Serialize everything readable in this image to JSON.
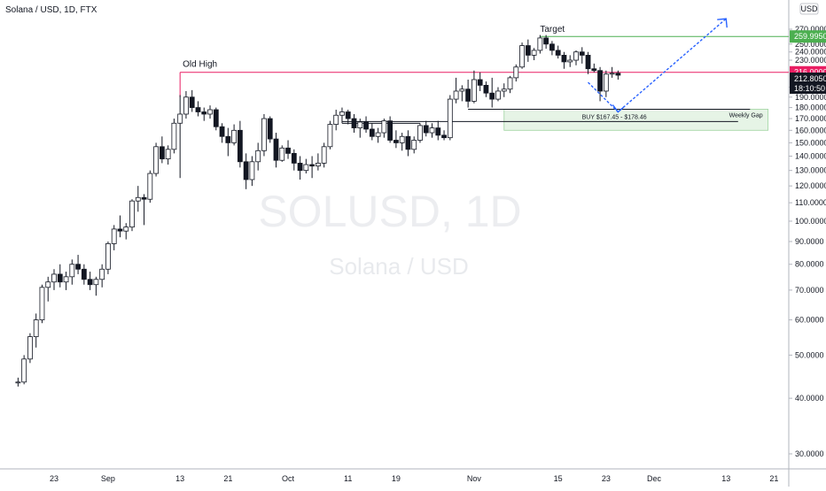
{
  "header": {
    "symbol": "Solana / USD, 1D, FTX",
    "currency_badge": "USD"
  },
  "watermark": {
    "ticker": "SOLUSD, 1D",
    "name": "Solana / USD"
  },
  "annotations": {
    "old_high": "Old High",
    "target": "Target",
    "weekly_gap": "Weekly Gap",
    "buy_zone": "BUY  $167.45 - $178.46"
  },
  "colors": {
    "up_candle": "#ffffff",
    "down_candle": "#131722",
    "old_high_line": "#e91e63",
    "target_line": "#4caf50",
    "gap_zone": "#4caf50",
    "arrow": "#2962ff"
  },
  "chart_data": {
    "type": "candlestick",
    "title": "Solana / USD, 1D, FTX",
    "xlabel": "",
    "ylabel": "USD",
    "y_scale": "log",
    "ylim": [
      28,
      285
    ],
    "y_ticks": [
      "270.0000",
      "250.0000",
      "240.0000",
      "230.0000",
      "200.0000",
      "190.0000",
      "180.0000",
      "170.0000",
      "160.0000",
      "150.0000",
      "140.0000",
      "130.0000",
      "120.0000",
      "110.0000",
      "100.0000",
      "90.0000",
      "80.0000",
      "70.0000",
      "60.0000",
      "50.0000",
      "40.0000",
      "30.0000"
    ],
    "x_ticks": [
      "23",
      "Sep",
      "13",
      "21",
      "Oct",
      "11",
      "19",
      "Nov",
      "15",
      "23",
      "Dec",
      "13",
      "21"
    ],
    "levels": [
      {
        "label": "Old High",
        "value": 216.0,
        "tag": "216.0000"
      },
      {
        "label": "Target",
        "value": 259.995,
        "tag": "259.9950"
      }
    ],
    "last_price": {
      "value": 212.805,
      "tag": "212.8050",
      "countdown": "18:10:50"
    },
    "zones": [
      {
        "label": "Weekly Gap",
        "from": 160.0,
        "to": 178.46
      }
    ],
    "buy_range": {
      "from": 167.45,
      "to": 178.46
    },
    "projection": [
      {
        "date": "2021-11-20",
        "price": 205
      },
      {
        "date": "2021-11-25",
        "price": 176
      },
      {
        "date": "2021-12-13",
        "price": 285
      }
    ],
    "ohlc": [
      [
        "2021-08-17",
        43.5,
        44.5,
        42.5,
        43.5
      ],
      [
        "2021-08-18",
        43.5,
        50,
        43,
        49
      ],
      [
        "2021-08-19",
        49,
        56,
        48,
        55
      ],
      [
        "2021-08-20",
        55,
        62,
        52,
        60
      ],
      [
        "2021-08-21",
        60,
        72,
        59,
        71
      ],
      [
        "2021-08-22",
        71,
        75,
        66,
        73
      ],
      [
        "2021-08-23",
        73,
        78,
        70,
        76
      ],
      [
        "2021-08-24",
        76,
        80,
        71,
        73
      ],
      [
        "2021-08-25",
        73,
        77,
        70,
        75
      ],
      [
        "2021-08-26",
        75,
        82,
        72,
        80
      ],
      [
        "2021-08-27",
        80,
        84,
        76,
        78
      ],
      [
        "2021-08-28",
        78,
        80,
        72,
        74
      ],
      [
        "2021-08-29",
        74,
        77,
        70,
        72
      ],
      [
        "2021-08-30",
        72,
        75,
        68,
        74
      ],
      [
        "2021-08-31",
        74,
        80,
        71,
        78
      ],
      [
        "2021-09-01",
        78,
        90,
        76,
        89
      ],
      [
        "2021-09-02",
        89,
        98,
        86,
        96
      ],
      [
        "2021-09-03",
        96,
        103,
        92,
        95
      ],
      [
        "2021-09-04",
        95,
        99,
        91,
        97
      ],
      [
        "2021-09-05",
        97,
        112,
        95,
        111
      ],
      [
        "2021-09-06",
        111,
        120,
        105,
        113
      ],
      [
        "2021-09-07",
        113,
        115,
        98,
        112
      ],
      [
        "2021-09-08",
        112,
        130,
        110,
        128
      ],
      [
        "2021-09-09",
        128,
        150,
        126,
        147
      ],
      [
        "2021-09-10",
        147,
        155,
        135,
        138
      ],
      [
        "2021-09-11",
        138,
        148,
        134,
        145
      ],
      [
        "2021-09-12",
        145,
        170,
        142,
        166
      ],
      [
        "2021-09-13",
        166,
        192,
        125,
        174
      ],
      [
        "2021-09-14",
        174,
        196,
        170,
        190
      ],
      [
        "2021-09-15",
        190,
        197,
        176,
        180
      ],
      [
        "2021-09-16",
        180,
        186,
        172,
        176
      ],
      [
        "2021-09-17",
        176,
        180,
        168,
        174
      ],
      [
        "2021-09-18",
        174,
        182,
        170,
        178
      ],
      [
        "2021-09-19",
        178,
        180,
        160,
        163
      ],
      [
        "2021-09-20",
        163,
        166,
        150,
        155
      ],
      [
        "2021-09-21",
        155,
        162,
        140,
        150
      ],
      [
        "2021-09-22",
        150,
        165,
        148,
        160
      ],
      [
        "2021-09-23",
        160,
        168,
        132,
        136
      ],
      [
        "2021-09-24",
        136,
        142,
        118,
        124
      ],
      [
        "2021-09-25",
        124,
        140,
        120,
        136
      ],
      [
        "2021-09-26",
        136,
        150,
        130,
        144
      ],
      [
        "2021-09-27",
        144,
        174,
        140,
        170
      ],
      [
        "2021-09-28",
        170,
        172,
        150,
        153
      ],
      [
        "2021-09-29",
        153,
        158,
        132,
        137
      ],
      [
        "2021-09-30",
        137,
        148,
        136,
        146
      ],
      [
        "2021-10-01",
        146,
        152,
        138,
        142
      ],
      [
        "2021-10-02",
        142,
        145,
        130,
        135
      ],
      [
        "2021-10-03",
        135,
        140,
        124,
        130
      ],
      [
        "2021-10-04",
        130,
        138,
        128,
        134
      ],
      [
        "2021-10-05",
        134,
        140,
        125,
        133
      ],
      [
        "2021-10-06",
        133,
        142,
        130,
        135
      ],
      [
        "2021-10-07",
        135,
        150,
        132,
        147
      ],
      [
        "2021-10-08",
        147,
        168,
        145,
        165
      ],
      [
        "2021-10-09",
        165,
        178,
        160,
        173
      ],
      [
        "2021-10-10",
        173,
        180,
        166,
        176
      ],
      [
        "2021-10-11",
        176,
        178,
        165,
        170
      ],
      [
        "2021-10-12",
        170,
        174,
        158,
        162
      ],
      [
        "2021-10-13",
        162,
        170,
        154,
        167
      ],
      [
        "2021-10-14",
        167,
        172,
        158,
        161
      ],
      [
        "2021-10-15",
        161,
        166,
        152,
        155
      ],
      [
        "2021-10-16",
        155,
        162,
        150,
        158
      ],
      [
        "2021-10-17",
        158,
        170,
        154,
        168
      ],
      [
        "2021-10-18",
        168,
        172,
        150,
        152
      ],
      [
        "2021-10-19",
        152,
        160,
        146,
        150
      ],
      [
        "2021-10-20",
        150,
        158,
        144,
        155
      ],
      [
        "2021-10-21",
        155,
        160,
        140,
        145
      ],
      [
        "2021-10-22",
        145,
        155,
        142,
        152
      ],
      [
        "2021-10-23",
        152,
        166,
        150,
        164
      ],
      [
        "2021-10-24",
        164,
        168,
        155,
        158
      ],
      [
        "2021-10-25",
        158,
        166,
        154,
        162
      ],
      [
        "2021-10-26",
        162,
        168,
        152,
        156
      ],
      [
        "2021-10-27",
        156,
        160,
        152,
        154
      ],
      [
        "2021-10-28",
        154,
        192,
        152,
        188
      ],
      [
        "2021-10-29",
        188,
        210,
        184,
        196
      ],
      [
        "2021-10-30",
        196,
        202,
        186,
        198
      ],
      [
        "2021-10-31",
        198,
        208,
        180,
        186
      ],
      [
        "2021-11-01",
        186,
        218,
        184,
        208
      ],
      [
        "2021-11-02",
        208,
        216,
        196,
        202
      ],
      [
        "2021-11-03",
        202,
        206,
        190,
        194
      ],
      [
        "2021-11-04",
        194,
        210,
        180,
        188
      ],
      [
        "2021-11-05",
        188,
        200,
        186,
        196
      ],
      [
        "2021-11-06",
        196,
        204,
        190,
        198
      ],
      [
        "2021-11-07",
        198,
        212,
        194,
        210
      ],
      [
        "2021-11-08",
        210,
        225,
        206,
        222
      ],
      [
        "2021-11-09",
        222,
        252,
        220,
        248
      ],
      [
        "2021-11-10",
        248,
        256,
        228,
        236
      ],
      [
        "2021-11-11",
        236,
        245,
        230,
        242
      ],
      [
        "2021-11-12",
        242,
        262,
        238,
        258
      ],
      [
        "2021-11-13",
        258,
        262,
        244,
        250
      ],
      [
        "2021-11-14",
        250,
        254,
        236,
        242
      ],
      [
        "2021-11-15",
        242,
        248,
        232,
        236
      ],
      [
        "2021-11-16",
        236,
        240,
        220,
        228
      ],
      [
        "2021-11-17",
        228,
        236,
        222,
        230
      ],
      [
        "2021-11-18",
        230,
        242,
        224,
        240
      ],
      [
        "2021-11-19",
        240,
        246,
        226,
        236
      ],
      [
        "2021-11-20",
        236,
        240,
        214,
        220
      ],
      [
        "2021-11-21",
        220,
        226,
        216,
        218
      ],
      [
        "2021-11-22",
        218,
        222,
        186,
        196
      ],
      [
        "2021-11-23",
        196,
        218,
        190,
        214
      ],
      [
        "2021-11-24",
        214,
        222,
        210,
        215
      ],
      [
        "2021-11-25",
        215,
        218,
        208,
        212.8
      ]
    ]
  }
}
